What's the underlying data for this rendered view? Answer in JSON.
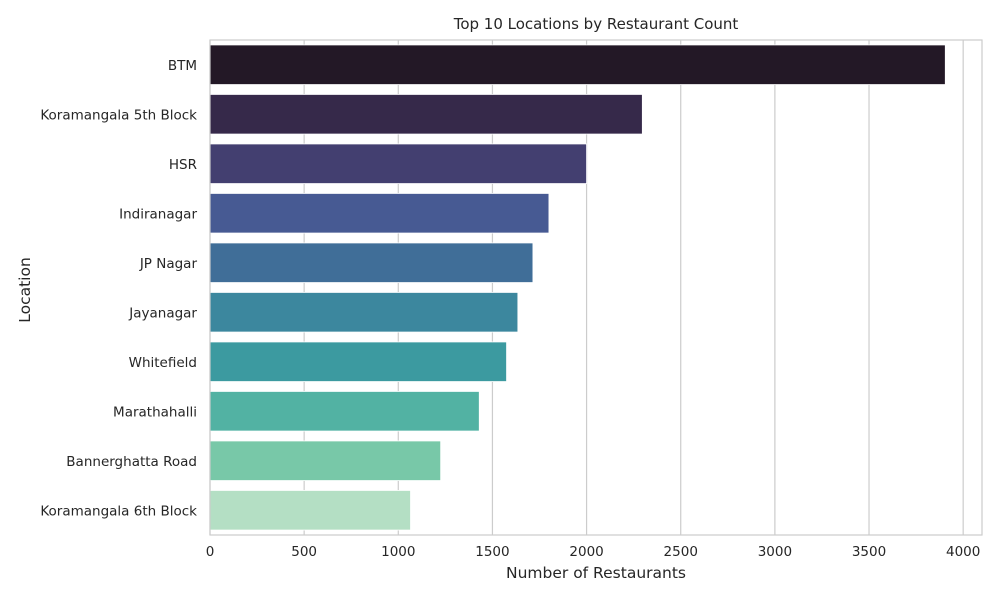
{
  "chart_data": {
    "type": "bar",
    "orientation": "horizontal",
    "title": "Top 10 Locations by Restaurant Count",
    "xlabel": "Number of Restaurants",
    "ylabel": "Location",
    "categories": [
      "BTM",
      "Koramangala 5th Block",
      "HSR",
      "Indiranagar",
      "JP Nagar",
      "Jayanagar",
      "Whitefield",
      "Marathahalli",
      "Bannerghatta Road",
      "Koramangala 6th Block"
    ],
    "values": [
      3905,
      2296,
      2000,
      1800,
      1715,
      1635,
      1575,
      1430,
      1225,
      1065
    ],
    "xlim": [
      0,
      4100
    ],
    "xticks": [
      0,
      500,
      1000,
      1500,
      2000,
      2500,
      3000,
      3500,
      4000
    ],
    "grid": true,
    "palette": [
      "#231826",
      "#36294a",
      "#433f70",
      "#475a93",
      "#406e98",
      "#3c879e",
      "#3c9aa0",
      "#52b2a3",
      "#78c8a8",
      "#b4dfc4"
    ],
    "grid_color": "#cccccc",
    "spine_color": "#cccccc"
  }
}
